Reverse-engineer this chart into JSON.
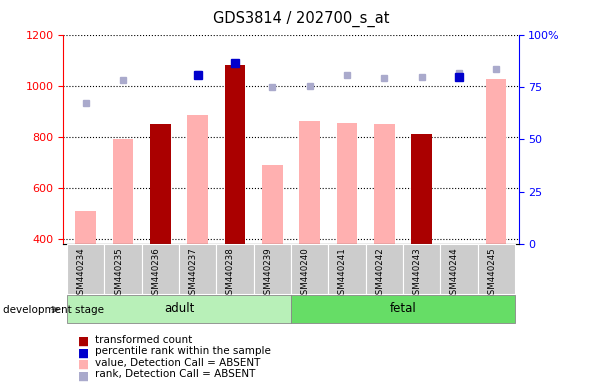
{
  "title": "GDS3814 / 202700_s_at",
  "samples": [
    "GSM440234",
    "GSM440235",
    "GSM440236",
    "GSM440237",
    "GSM440238",
    "GSM440239",
    "GSM440240",
    "GSM440241",
    "GSM440242",
    "GSM440243",
    "GSM440244",
    "GSM440245"
  ],
  "transformed_count": [
    null,
    null,
    850,
    null,
    1080,
    null,
    null,
    null,
    null,
    810,
    null,
    null
  ],
  "percentile_rank": [
    null,
    null,
    null,
    1040,
    1090,
    null,
    null,
    null,
    null,
    null,
    1035,
    null
  ],
  "value_absent": [
    510,
    790,
    null,
    885,
    null,
    690,
    860,
    855,
    850,
    null,
    null,
    1025
  ],
  "rank_absent": [
    930,
    1020,
    null,
    1045,
    null,
    995,
    1000,
    1040,
    1030,
    1035,
    1050,
    1065
  ],
  "ylim_left": [
    380,
    1200
  ],
  "ylim_right": [
    0,
    100
  ],
  "y_ticks_left": [
    400,
    600,
    800,
    1000,
    1200
  ],
  "y_ticks_right": [
    0,
    25,
    50,
    75,
    100
  ],
  "bar_color_present": "#aa0000",
  "bar_color_absent_val": "#ffb0b0",
  "dot_color_present": "#0000cc",
  "dot_color_absent_rank": "#aaaacc",
  "adult_color": "#b8f0b8",
  "fetal_color": "#66dd66",
  "group_box_color": "#cccccc",
  "legend_items": [
    {
      "label": "transformed count",
      "color": "#aa0000"
    },
    {
      "label": "percentile rank within the sample",
      "color": "#0000cc"
    },
    {
      "label": "value, Detection Call = ABSENT",
      "color": "#ffb0b0"
    },
    {
      "label": "rank, Detection Call = ABSENT",
      "color": "#aaaacc"
    }
  ]
}
